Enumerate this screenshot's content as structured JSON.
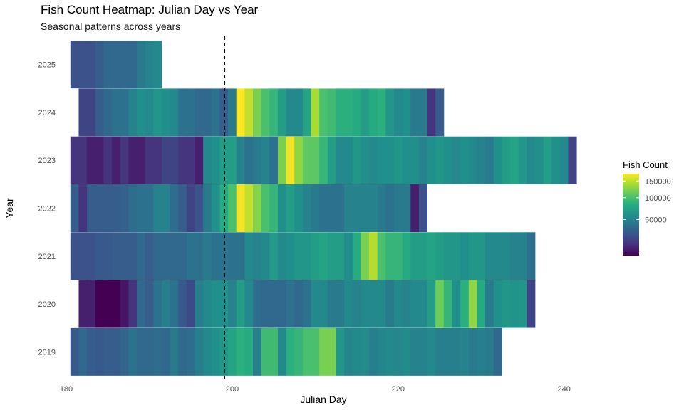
{
  "chart_data": {
    "type": "heatmap",
    "title": "Fish Count Heatmap: Julian Day vs Year",
    "subtitle": "Seasonal patterns across years",
    "xlabel": "Julian Day",
    "ylabel": "Year",
    "xlim": [
      180,
      242
    ],
    "x_ticks": [
      180,
      200,
      220,
      240
    ],
    "y_categories": [
      "2019",
      "2020",
      "2021",
      "2022",
      "2023",
      "2024",
      "2025"
    ],
    "vline_x": 199.1,
    "legend": {
      "title": "Fish Count",
      "position": "right",
      "breaks": [
        50000,
        100000,
        150000
      ],
      "limits": [
        5000,
        175000
      ]
    },
    "colorscale": [
      "#440154",
      "#472D7B",
      "#3B528B",
      "#2C728E",
      "#21908C",
      "#27AD81",
      "#5DC863",
      "#AADC32",
      "#FDE725"
    ],
    "rows": [
      {
        "year": "2019",
        "start": 181,
        "values": [
          28000,
          35000,
          30000,
          28000,
          30000,
          30000,
          34000,
          40000,
          35000,
          35000,
          38000,
          35000,
          45000,
          35000,
          38000,
          48000,
          55000,
          60000,
          65000,
          75000,
          85000,
          80000,
          48000,
          95000,
          95000,
          55000,
          85000,
          90000,
          100000,
          100000,
          120000,
          120000,
          65000,
          52000,
          55000,
          56000,
          48000,
          52000,
          55000,
          53000,
          56000,
          50000,
          50000,
          55000,
          48000,
          48000,
          48000,
          50000,
          45000,
          48000,
          45000,
          35000
        ]
      },
      {
        "year": "2020",
        "start": 182,
        "values": [
          10000,
          10000,
          5000,
          5000,
          5000,
          8000,
          15000,
          35000,
          30000,
          40000,
          48000,
          40000,
          28000,
          22000,
          48000,
          55000,
          60000,
          60000,
          50000,
          70000,
          55000,
          38000,
          35000,
          35000,
          35000,
          40000,
          35000,
          40000,
          55000,
          55000,
          45000,
          45000,
          55000,
          50000,
          55000,
          55000,
          55000,
          45000,
          55000,
          50000,
          55000,
          55000,
          70000,
          115000,
          90000,
          60000,
          85000,
          130000,
          80000,
          45000,
          60000,
          65000,
          62000,
          65000,
          20000
        ]
      },
      {
        "year": "2021",
        "start": 181,
        "values": [
          25000,
          25000,
          25000,
          28000,
          28000,
          30000,
          30000,
          30000,
          35000,
          30000,
          35000,
          35000,
          35000,
          35000,
          40000,
          40000,
          45000,
          40000,
          40000,
          40000,
          40000,
          55000,
          50000,
          55000,
          68000,
          55000,
          60000,
          65000,
          65000,
          70000,
          75000,
          70000,
          70000,
          58000,
          82000,
          120000,
          145000,
          100000,
          90000,
          90000,
          80000,
          70000,
          70000,
          75000,
          70000,
          65000,
          65000,
          60000,
          65000,
          65000,
          55000,
          55000,
          55000,
          50000,
          50000,
          40000
        ]
      },
      {
        "year": "2022",
        "start": 181,
        "values": [
          30000,
          15000,
          30000,
          30000,
          30000,
          30000,
          32000,
          38000,
          40000,
          40000,
          50000,
          50000,
          38000,
          30000,
          20000,
          25000,
          45000,
          60000,
          80000,
          100000,
          170000,
          150000,
          125000,
          100000,
          90000,
          60000,
          70000,
          60000,
          50000,
          45000,
          40000,
          40000,
          40000,
          50000,
          50000,
          50000,
          50000,
          45000,
          40000,
          45000,
          45000,
          10000,
          25000
        ]
      },
      {
        "year": "2023",
        "start": 181,
        "values": [
          15000,
          15000,
          10000,
          10000,
          15000,
          10000,
          15000,
          10000,
          10000,
          15000,
          15000,
          20000,
          20000,
          15000,
          15000,
          10000,
          55000,
          60000,
          70000,
          70000,
          50000,
          40000,
          45000,
          50000,
          40000,
          120000,
          170000,
          130000,
          110000,
          110000,
          90000,
          70000,
          55000,
          55000,
          65000,
          60000,
          55000,
          60000,
          60000,
          65000,
          60000,
          60000,
          50000,
          60000,
          65000,
          60000,
          55000,
          60000,
          55000,
          50000,
          45000,
          60000,
          70000,
          75000,
          65000,
          55000,
          60000,
          70000,
          60000,
          55000,
          20000
        ]
      },
      {
        "year": "2024",
        "start": 182,
        "values": [
          20000,
          20000,
          30000,
          35000,
          40000,
          40000,
          50000,
          60000,
          55000,
          65000,
          60000,
          55000,
          40000,
          40000,
          35000,
          35000,
          40000,
          30000,
          45000,
          180000,
          150000,
          120000,
          100000,
          90000,
          70000,
          55000,
          55000,
          75000,
          140000,
          100000,
          95000,
          85000,
          85000,
          80000,
          70000,
          80000,
          85000,
          65000,
          55000,
          60000,
          45000,
          45000,
          15000,
          30000
        ]
      },
      {
        "year": "2025",
        "start": 181,
        "values": [
          25000,
          25000,
          25000,
          30000,
          35000,
          35000,
          35000,
          35000,
          45000,
          50000,
          55000
        ]
      }
    ]
  }
}
